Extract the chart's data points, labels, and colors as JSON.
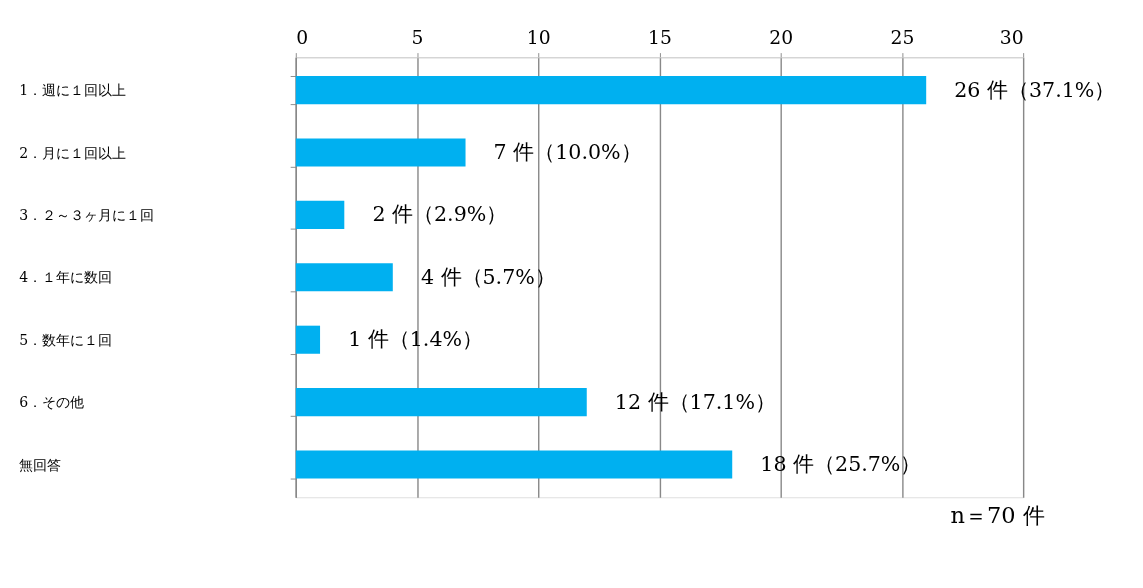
{
  "chart_data": {
    "type": "bar",
    "orientation": "horizontal",
    "categories": [
      "1．週に１回以上",
      "2．月に１回以上",
      "3．２～３ヶ月に１回",
      "4．１年に数回",
      "5．数年に１回",
      "6．その他",
      "無回答"
    ],
    "values": [
      26,
      7,
      2,
      4,
      1,
      12,
      18
    ],
    "color": "#00b0f0",
    "value_labels": [
      "26 件（37.1%）",
      "7 件（10.0%）",
      "2 件（2.9%）",
      "4 件（5.7%）",
      "1 件（1.4%）",
      "12 件（17.1%）",
      "18 件（25.7%）"
    ],
    "x2lim": [
      0,
      30
    ],
    "x2ticks": [
      0,
      5,
      10,
      15,
      20,
      25,
      30
    ],
    "grid": "x",
    "annotations": [
      "n＝70 件"
    ]
  }
}
